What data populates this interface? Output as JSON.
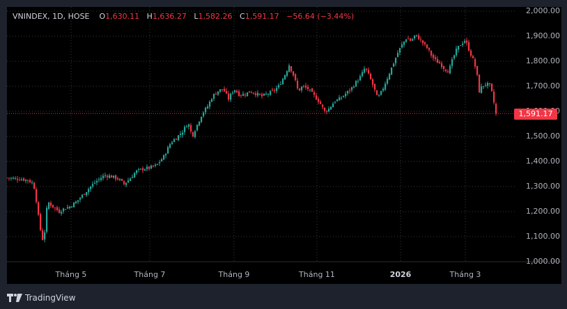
{
  "legend": {
    "symbol": "VNINDEX, 1D, HOSE",
    "open_label": "O",
    "open": "1,630.11",
    "high_label": "H",
    "high": "1,636.27",
    "low_label": "L",
    "low": "1,582.26",
    "close_label": "C",
    "close": "1,591.17",
    "change": "−56.64 (−3.44%)"
  },
  "last_price_tag": "1,591.17",
  "footer": {
    "brand": "TradingView"
  },
  "colors": {
    "up": "#26a69a",
    "down": "#f23645",
    "background": "#000000",
    "frame": "#1e222d",
    "grid": "#363a45",
    "text": "#b2b5be"
  },
  "chart_data": {
    "type": "candlestick",
    "title": "VNINDEX, 1D, HOSE",
    "xlabel": "",
    "ylabel": "",
    "ylim": [
      1000,
      2000
    ],
    "y_ticks": [
      "2,000.00",
      "1,900.00",
      "1,800.00",
      "1,700.00",
      "1,600.00",
      "1,500.00",
      "1,400.00",
      "1,300.00",
      "1,200.00",
      "1,100.00",
      "1,000.00"
    ],
    "x_ticks": [
      {
        "label": "Tháng 5",
        "x": 102,
        "bold": false
      },
      {
        "label": "Tháng 7",
        "x": 215,
        "bold": false
      },
      {
        "label": "Tháng 9",
        "x": 336,
        "bold": false
      },
      {
        "label": "Tháng 11",
        "x": 455,
        "bold": false
      },
      {
        "label": "2026",
        "x": 575,
        "bold": true
      },
      {
        "label": "Tháng 3",
        "x": 668,
        "bold": false
      }
    ],
    "grid": true,
    "last": {
      "open": 1630.11,
      "high": 1636.27,
      "low": 1582.26,
      "close": 1591.17,
      "change": -56.64,
      "change_pct": -3.44
    },
    "path_points": [
      [
        10,
        1335
      ],
      [
        20,
        1332
      ],
      [
        30,
        1330
      ],
      [
        40,
        1325
      ],
      [
        48,
        1312
      ],
      [
        52,
        1245
      ],
      [
        56,
        1160
      ],
      [
        60,
        1095
      ],
      [
        63,
        1080
      ],
      [
        66,
        1200
      ],
      [
        70,
        1235
      ],
      [
        78,
        1215
      ],
      [
        85,
        1200
      ],
      [
        92,
        1212
      ],
      [
        100,
        1220
      ],
      [
        110,
        1240
      ],
      [
        120,
        1270
      ],
      [
        130,
        1300
      ],
      [
        140,
        1325
      ],
      [
        150,
        1345
      ],
      [
        160,
        1340
      ],
      [
        170,
        1330
      ],
      [
        178,
        1310
      ],
      [
        186,
        1330
      ],
      [
        195,
        1360
      ],
      [
        205,
        1370
      ],
      [
        215,
        1375
      ],
      [
        225,
        1385
      ],
      [
        235,
        1420
      ],
      [
        245,
        1475
      ],
      [
        255,
        1500
      ],
      [
        262,
        1520
      ],
      [
        270,
        1555
      ],
      [
        276,
        1500
      ],
      [
        282,
        1540
      ],
      [
        290,
        1590
      ],
      [
        298,
        1620
      ],
      [
        305,
        1660
      ],
      [
        312,
        1680
      ],
      [
        320,
        1690
      ],
      [
        328,
        1650
      ],
      [
        336,
        1690
      ],
      [
        344,
        1665
      ],
      [
        352,
        1670
      ],
      [
        360,
        1680
      ],
      [
        368,
        1670
      ],
      [
        376,
        1660
      ],
      [
        384,
        1670
      ],
      [
        392,
        1680
      ],
      [
        400,
        1700
      ],
      [
        408,
        1740
      ],
      [
        415,
        1785
      ],
      [
        422,
        1740
      ],
      [
        428,
        1680
      ],
      [
        434,
        1700
      ],
      [
        442,
        1690
      ],
      [
        450,
        1665
      ],
      [
        458,
        1640
      ],
      [
        466,
        1600
      ],
      [
        472,
        1610
      ],
      [
        480,
        1640
      ],
      [
        488,
        1650
      ],
      [
        496,
        1670
      ],
      [
        504,
        1690
      ],
      [
        512,
        1720
      ],
      [
        518,
        1740
      ],
      [
        524,
        1775
      ],
      [
        530,
        1740
      ],
      [
        536,
        1700
      ],
      [
        542,
        1650
      ],
      [
        548,
        1680
      ],
      [
        554,
        1720
      ],
      [
        560,
        1760
      ],
      [
        566,
        1800
      ],
      [
        572,
        1840
      ],
      [
        578,
        1870
      ],
      [
        584,
        1895
      ],
      [
        590,
        1880
      ],
      [
        596,
        1905
      ],
      [
        602,
        1890
      ],
      [
        608,
        1870
      ],
      [
        614,
        1850
      ],
      [
        620,
        1820
      ],
      [
        626,
        1800
      ],
      [
        632,
        1790
      ],
      [
        638,
        1770
      ],
      [
        644,
        1760
      ],
      [
        650,
        1810
      ],
      [
        656,
        1850
      ],
      [
        662,
        1870
      ],
      [
        668,
        1885
      ],
      [
        674,
        1840
      ],
      [
        680,
        1800
      ],
      [
        684,
        1760
      ],
      [
        688,
        1680
      ],
      [
        692,
        1700
      ],
      [
        698,
        1710
      ],
      [
        704,
        1700
      ],
      [
        708,
        1650
      ],
      [
        712,
        1591
      ]
    ]
  }
}
